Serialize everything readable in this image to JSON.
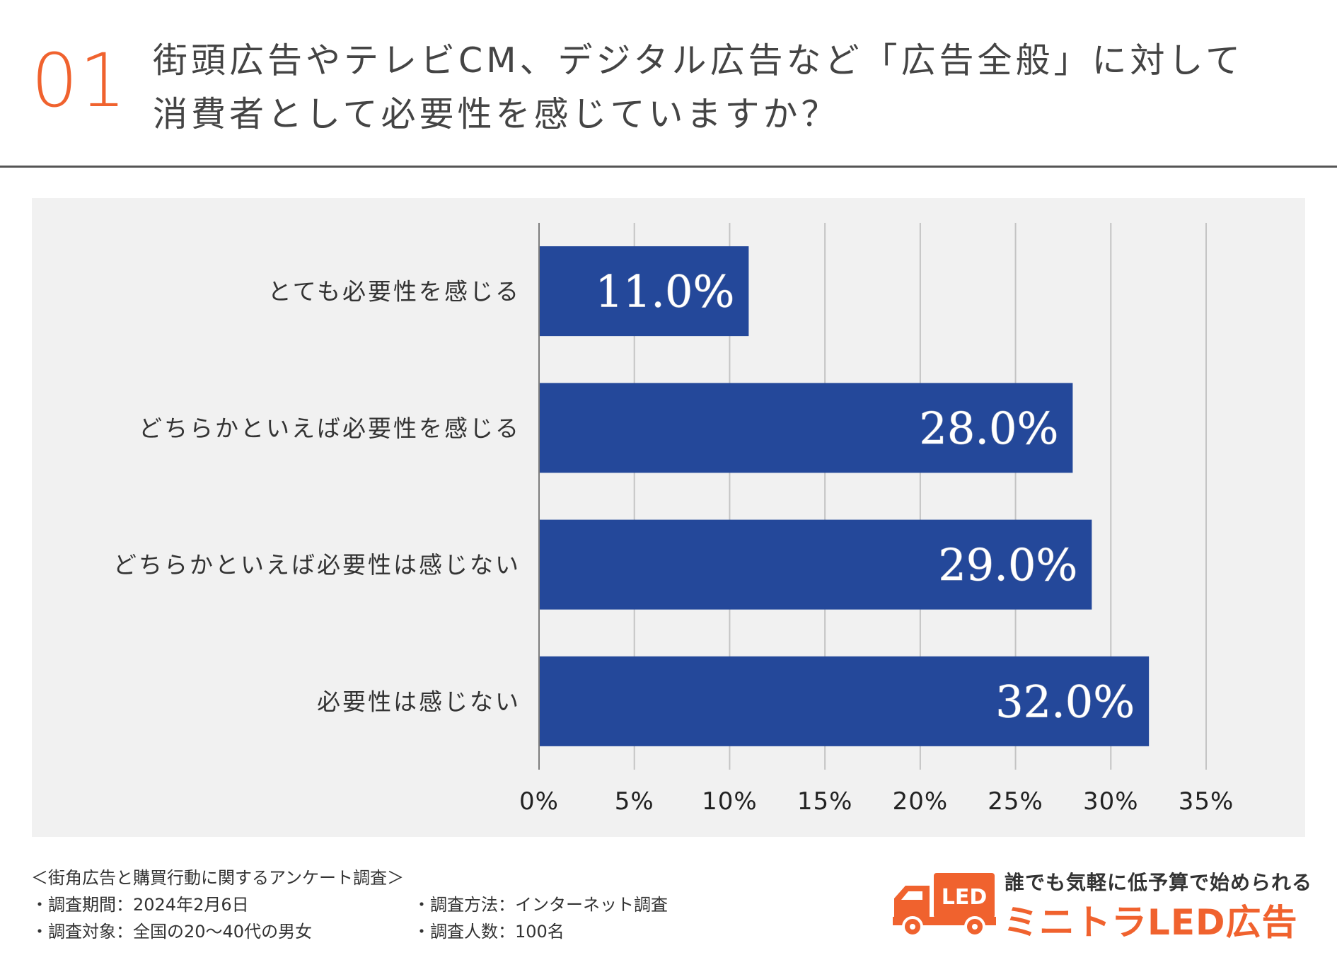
{
  "header": {
    "number": "01",
    "title_lines": [
      "街頭広告やテレビCM、デジタル広告など「広告全般」に対して",
      "消費者として必要性を感じていますか？"
    ]
  },
  "chart_data": {
    "type": "bar",
    "orientation": "horizontal",
    "categories": [
      "とても必要性を感じる",
      "どちらかといえば必要性を感じる",
      "どちらかといえば必要性は感じない",
      "必要性は感じない"
    ],
    "values": [
      11.0,
      28.0,
      29.0,
      32.0
    ],
    "value_labels": [
      "11.0%",
      "28.0%",
      "29.0%",
      "32.0%"
    ],
    "xlim": [
      0,
      35
    ],
    "x_ticks": [
      0,
      5,
      10,
      15,
      20,
      25,
      30,
      35
    ],
    "x_tick_labels": [
      "0%",
      "5%",
      "10%",
      "15%",
      "20%",
      "25%",
      "30%",
      "35%"
    ],
    "grid": true,
    "bar_color": "#24489a",
    "background_color": "#f1f1f1"
  },
  "survey": {
    "title": "＜街角広告と購買行動に関するアンケート調査＞",
    "rows": [
      {
        "left": "・調査期間：2024年2月6日",
        "right": "・調査方法：インターネット調査"
      },
      {
        "left": "・調査対象：全国の20〜40代の男女",
        "right": "・調査人数：100名"
      }
    ]
  },
  "brand": {
    "tagline": "誰でも気軽に低予算で始められる",
    "name": "ミニトラLED広告",
    "logo_text": "LED",
    "logo_icon": "truck-icon",
    "accent_color": "#f0622e"
  }
}
